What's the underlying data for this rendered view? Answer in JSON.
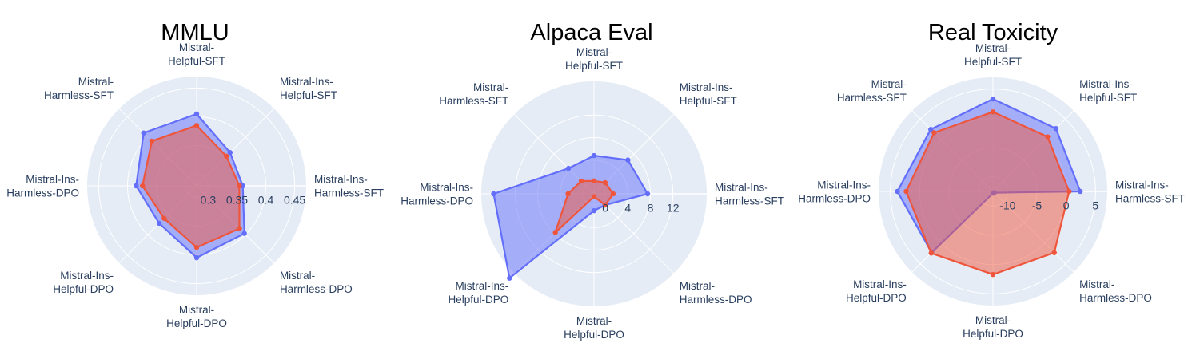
{
  "chart_data": [
    {
      "type": "radar",
      "title": "MMLU",
      "axes": [
        [
          "Mistral-Ins-",
          "Harmless-SFT"
        ],
        [
          "Mistral-Ins-",
          "Helpful-SFT"
        ],
        [
          "Mistral-",
          "Helpful-SFT"
        ],
        [
          "Mistral-",
          "Harmless-SFT"
        ],
        [
          "Mistral-Ins-",
          "Harmless-DPO"
        ],
        [
          "Mistral-Ins-",
          "Helpful-DPO"
        ],
        [
          "Mistral-",
          "Helpful-DPO"
        ],
        [
          "Mistral-",
          "Harmless-DPO"
        ]
      ],
      "radial_range": [
        0.28,
        0.47
      ],
      "radial_ticks": [
        "0.3",
        "0.35",
        "0.4",
        "0.45"
      ],
      "radial_tick_values": [
        0.3,
        0.35,
        0.4,
        0.45
      ],
      "series": [
        {
          "color": "#636efa",
          "values": [
            0.36,
            0.362,
            0.405,
            0.41,
            0.385,
            0.372,
            0.405,
            0.397
          ]
        },
        {
          "color": "#ef553b",
          "values": [
            0.354,
            0.353,
            0.385,
            0.39,
            0.374,
            0.36,
            0.387,
            0.385
          ]
        }
      ]
    },
    {
      "type": "radar",
      "title": "Alpaca Eval",
      "axes": [
        [
          "Mistral-Ins-",
          "Harmless-SFT"
        ],
        [
          "Mistral-Ins-",
          "Helpful-SFT"
        ],
        [
          "Mistral-",
          "Helpful-SFT"
        ],
        [
          "Mistral-",
          "Harmless-SFT"
        ],
        [
          "Mistral-Ins-",
          "Harmless-DPO"
        ],
        [
          "Mistral-Ins-",
          "Helpful-DPO"
        ],
        [
          "Mistral-",
          "Helpful-DPO"
        ],
        [
          "Mistral-",
          "Harmless-DPO"
        ]
      ],
      "radial_range": [
        -2,
        18
      ],
      "radial_ticks": [
        "0",
        "4",
        "8",
        "12"
      ],
      "radial_tick_values": [
        0,
        4,
        8,
        12
      ],
      "series": [
        {
          "color": "#636efa",
          "values": [
            7.5,
            6.5,
            4.8,
            4.4,
            15.8,
            19.2,
            1,
            0.8
          ]
        },
        {
          "color": "#ef553b",
          "values": [
            1.4,
            0.8,
            0.3,
            1.2,
            2.6,
            7.7,
            -1.5,
            0.8
          ]
        }
      ]
    },
    {
      "type": "radar",
      "title": "Real Toxicity",
      "axes": [
        [
          "Mistral-Ins-",
          "Harmless-SFT"
        ],
        [
          "Mistral-Ins-",
          "Helpful-SFT"
        ],
        [
          "Mistral-",
          "Helpful-SFT"
        ],
        [
          "Mistral-",
          "Harmless-SFT"
        ],
        [
          "Mistral-Ins-",
          "Harmless-DPO"
        ],
        [
          "Mistral-Ins-",
          "Helpful-DPO"
        ],
        [
          "Mistral-",
          "Helpful-DPO"
        ],
        [
          "Mistral-",
          "Harmless-DPO"
        ]
      ],
      "radial_range": [
        -12.5,
        7
      ],
      "radial_ticks": [
        "-10",
        "-5",
        "0",
        "5"
      ],
      "radial_tick_values": [
        -10,
        -5,
        0,
        5
      ],
      "series": [
        {
          "color": "#636efa",
          "values": [
            2.4,
            2.7,
            3.3,
            2.5,
            3.8,
            2.3,
            -12.2,
            -12.2
          ]
        },
        {
          "color": "#ef553b",
          "values": [
            0.5,
            0.7,
            1.1,
            1.7,
            2.3,
            2.4,
            1.7,
            2.3
          ]
        }
      ]
    }
  ]
}
